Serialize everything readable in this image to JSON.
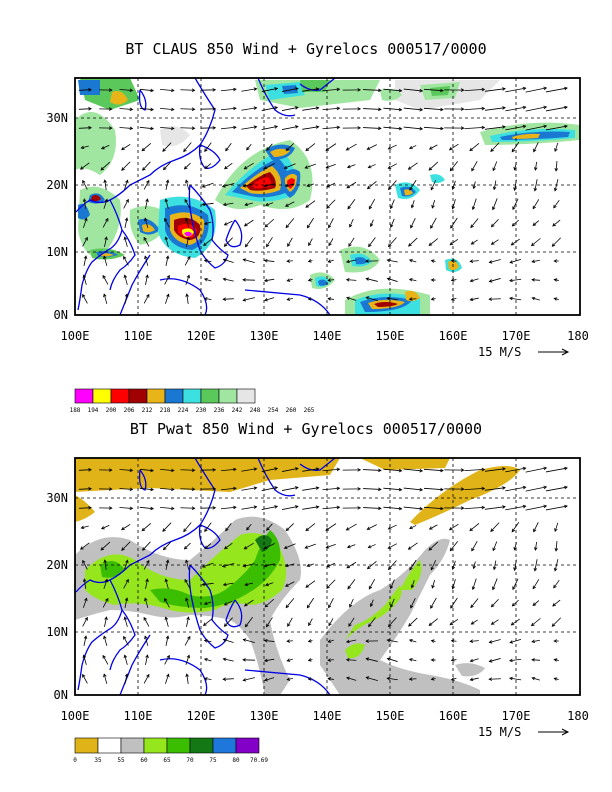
{
  "panels": [
    {
      "title": "BT CLAUS 850 Wind + Gyrelocs 000517/0000",
      "lon_labels": [
        "100E",
        "110E",
        "120E",
        "130E",
        "140E",
        "150E",
        "160E",
        "170E",
        "180"
      ],
      "lat_labels": [
        "0N",
        "10N",
        "20N",
        "30N"
      ],
      "ref_vector": "15 M/S",
      "legend": {
        "labels": [
          "188",
          "194",
          "200",
          "206",
          "212",
          "218",
          "224",
          "230",
          "236",
          "242",
          "248",
          "254",
          "260",
          "265"
        ],
        "colors": [
          "#ff00ff",
          "#ffff00",
          "#ff0000",
          "#a00000",
          "#e8b418",
          "#1a78d2",
          "#3ce0e0",
          "#5ac85a",
          "#a0e6a0",
          "#e6e6e6"
        ]
      }
    },
    {
      "title": "BT Pwat 850 Wind + Gyrelocs 000517/0000",
      "lon_labels": [
        "100E",
        "110E",
        "120E",
        "130E",
        "140E",
        "150E",
        "160E",
        "170E",
        "180"
      ],
      "lat_labels": [
        "0N",
        "10N",
        "20N",
        "30N"
      ],
      "ref_vector": "15 M/S",
      "legend": {
        "labels": [
          "0",
          "35",
          "55",
          "60",
          "65",
          "70",
          "75",
          "80",
          "70.69"
        ],
        "colors": [
          "#e0b418",
          "#ffffff",
          "#c0c0c0",
          "#96e61e",
          "#3cbe00",
          "#147814",
          "#1e78dc",
          "#8200c8"
        ]
      }
    }
  ],
  "colors": {
    "coastline": "#0000e6",
    "grid": "#000000"
  }
}
